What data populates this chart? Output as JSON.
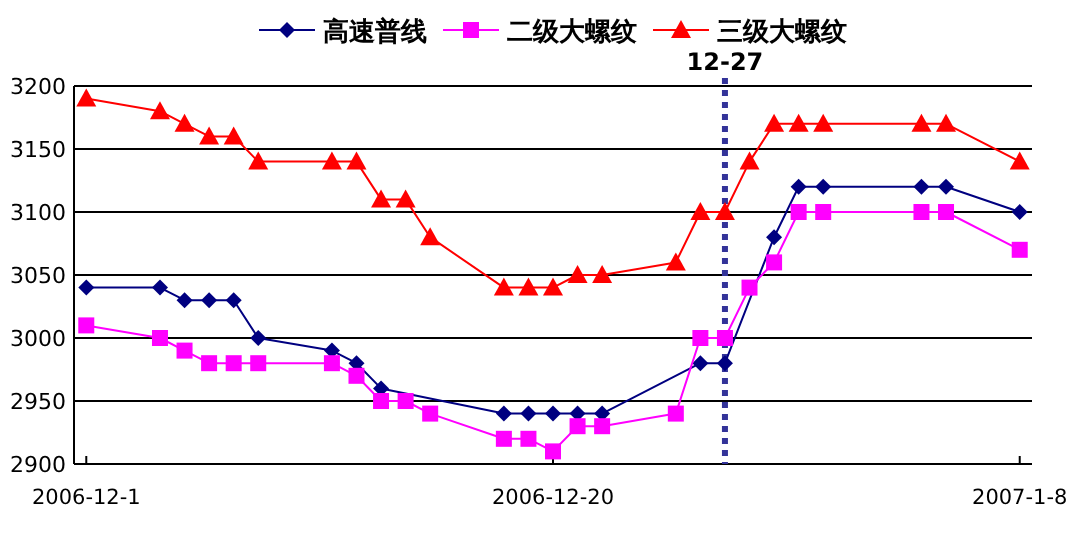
{
  "chart_data": {
    "type": "line",
    "x": [
      "2006-12-01",
      "2006-12-04",
      "2006-12-05",
      "2006-12-06",
      "2006-12-07",
      "2006-12-08",
      "2006-12-11",
      "2006-12-12",
      "2006-12-13",
      "2006-12-14",
      "2006-12-15",
      "2006-12-18",
      "2006-12-19",
      "2006-12-20",
      "2006-12-21",
      "2006-12-22",
      "2006-12-25",
      "2006-12-26",
      "2006-12-27",
      "2006-12-28",
      "2006-12-29",
      "2006-12-30",
      "2006-12-31",
      "2007-01-04",
      "2007-01-05",
      "2007-01-08"
    ],
    "series": [
      {
        "name": "高速普线",
        "color": "#000080",
        "marker": "diamond",
        "values": [
          3040,
          3040,
          3030,
          3030,
          3030,
          3000,
          2990,
          2980,
          2960,
          null,
          null,
          2940,
          2940,
          2940,
          2940,
          2940,
          null,
          2980,
          2980,
          null,
          3080,
          3120,
          3120,
          3120,
          3120,
          3100
        ]
      },
      {
        "name": "二级大螺纹",
        "color": "#ff00ff",
        "marker": "square",
        "values": [
          3010,
          3000,
          2990,
          2980,
          2980,
          2980,
          2980,
          2970,
          2950,
          2950,
          2940,
          2920,
          2920,
          2910,
          2930,
          2930,
          2940,
          3000,
          3000,
          3040,
          3060,
          3100,
          3100,
          3100,
          3100,
          3070
        ]
      },
      {
        "name": "三级大螺纹",
        "color": "#ff0000",
        "marker": "triangle",
        "values": [
          3190,
          3180,
          3170,
          3160,
          3160,
          3140,
          3140,
          3140,
          3110,
          3110,
          3080,
          3040,
          3040,
          3040,
          3050,
          3050,
          3060,
          3100,
          3100,
          3140,
          3170,
          3170,
          3170,
          3170,
          3170,
          3140
        ]
      }
    ],
    "xlim": [
      "2006-11-30T12:00",
      "2007-01-08T12:00"
    ],
    "xticks": [
      {
        "value": "2006-12-01",
        "label": "2006-12-1"
      },
      {
        "value": "2006-12-20",
        "label": "2006-12-20"
      },
      {
        "value": "2007-01-08",
        "label": "2007-1-8"
      }
    ],
    "ylim": [
      2900,
      3200
    ],
    "yticks": [
      2900,
      2950,
      3000,
      3050,
      3100,
      3150,
      3200
    ],
    "grid": "y",
    "legend": "top",
    "ref_lines": [
      {
        "axis": "x",
        "value": "2006-12-27",
        "label": "12-27",
        "color": "#333399",
        "line_style": "dotted"
      }
    ]
  }
}
